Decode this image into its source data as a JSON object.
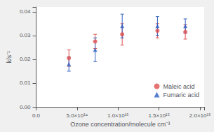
{
  "chart_data": {
    "type": "scatter",
    "xlabel": "Ozone concentration/molecule cm⁻³",
    "ylabel": "k/s⁻¹",
    "xlim": [
      0,
      2050000000000000.0
    ],
    "ylim": [
      0.0,
      0.042
    ],
    "yticks": [
      {
        "value": 0,
        "label": "0.00"
      },
      0.01,
      0.02,
      0.03,
      0.04
    ],
    "xticks": [
      {
        "value": 0,
        "label": "0.0"
      },
      {
        "value": 500000000000000.0,
        "label": "5.0×10¹⁴"
      },
      {
        "value": 1000000000000000.0,
        "label": "1.0×10¹⁵"
      },
      {
        "value": 1500000000000000.0,
        "label": "1.5×10¹⁵"
      },
      {
        "value": 2000000000000000.0,
        "label": "2.0×10¹⁵"
      }
    ],
    "series": [
      {
        "name": "Maleic acid",
        "color": "#e05050",
        "marker": "circle",
        "x": [
          400000000000000.0,
          720000000000000.0,
          1050000000000000.0,
          1480000000000000.0,
          1820000000000000.0
        ],
        "values": [
          0.0205,
          0.0275,
          0.0305,
          0.032,
          0.0315
        ],
        "yerr": [
          0.0035,
          0.003,
          0.0045,
          0.003,
          0.003
        ]
      },
      {
        "name": "Fumaric acid",
        "color": "#3060c0",
        "marker": "triangle",
        "x": [
          400000000000000.0,
          720000000000000.0,
          1050000000000000.0,
          1480000000000000.0,
          1820000000000000.0
        ],
        "values": [
          0.018,
          0.024,
          0.034,
          0.034,
          0.034
        ],
        "yerr": [
          0.003,
          0.005,
          0.005,
          0.004,
          0.003
        ]
      }
    ],
    "grid": false,
    "legend": "lower right"
  }
}
